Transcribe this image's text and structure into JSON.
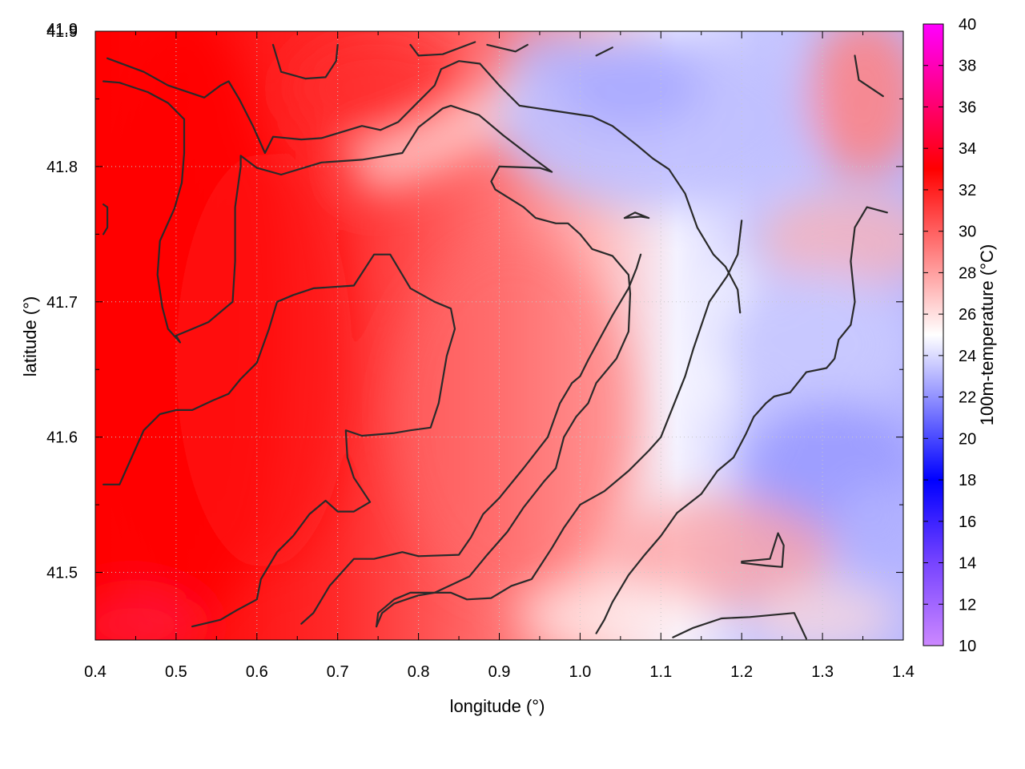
{
  "chart_data": {
    "type": "heatmap",
    "xlabel": "longitude (°)",
    "ylabel": "latitude (°)",
    "colorbar_label": "100m-temperature (°C)",
    "xlim": [
      0.4,
      1.4
    ],
    "ylim": [
      41.45,
      41.9
    ],
    "xticks": [
      "0.4",
      "0.5",
      "0.6",
      "0.7",
      "0.8",
      "0.9",
      "1.0",
      "1.1",
      "1.2",
      "1.3",
      "1.4"
    ],
    "yticks": [
      "41.5",
      "41.6",
      "41.7",
      "41.8",
      "41.9"
    ],
    "colorbar_range": [
      10,
      40
    ],
    "colorbar_ticks": [
      "10",
      "12",
      "14",
      "16",
      "18",
      "20",
      "22",
      "24",
      "26",
      "28",
      "30",
      "32",
      "34",
      "36",
      "38",
      "40"
    ],
    "grid": true,
    "colormap_stops": [
      {
        "value": 10,
        "color": "#cc88ff"
      },
      {
        "value": 14,
        "color": "#7744ff"
      },
      {
        "value": 18,
        "color": "#0000ff"
      },
      {
        "value": 25,
        "color": "#ffffff"
      },
      {
        "value": 33,
        "color": "#ff0000"
      },
      {
        "value": 40,
        "color": "#ff00ff"
      }
    ],
    "temperature_field": {
      "approx_range": [
        22,
        34
      ],
      "west": "32–34 °C (red)",
      "center": "26–30 °C (light red)",
      "east": "22–24 °C (blue)"
    },
    "contour_color": "#2a2a2a",
    "contours": [
      [
        [
          0.415,
          41.88
        ],
        [
          0.46,
          41.87
        ],
        [
          0.49,
          41.86
        ],
        [
          0.535,
          41.851
        ],
        [
          0.555,
          41.86
        ],
        [
          0.565,
          41.863
        ],
        [
          0.578,
          41.85
        ],
        [
          0.595,
          41.83
        ],
        [
          0.61,
          41.81
        ],
        [
          0.62,
          41.822
        ],
        [
          0.655,
          41.82
        ],
        [
          0.68,
          41.821
        ],
        [
          0.73,
          41.83
        ],
        [
          0.753,
          41.827
        ],
        [
          0.775,
          41.833
        ],
        [
          0.8,
          41.848
        ],
        [
          0.82,
          41.86
        ],
        [
          0.828,
          41.872
        ],
        [
          0.85,
          41.878
        ],
        [
          0.876,
          41.876
        ],
        [
          0.9,
          41.86
        ],
        [
          0.925,
          41.845
        ],
        [
          0.97,
          41.841
        ],
        [
          1.015,
          41.837
        ],
        [
          1.04,
          41.83
        ],
        [
          1.07,
          41.816
        ],
        [
          1.09,
          41.806
        ],
        [
          1.11,
          41.798
        ],
        [
          1.13,
          41.78
        ],
        [
          1.145,
          41.755
        ],
        [
          1.165,
          41.735
        ],
        [
          1.18,
          41.726
        ],
        [
          1.195,
          41.709
        ],
        [
          1.198,
          41.692
        ]
      ],
      [
        [
          0.41,
          41.863
        ],
        [
          0.43,
          41.862
        ],
        [
          0.465,
          41.855
        ],
        [
          0.49,
          41.847
        ],
        [
          0.51,
          41.835
        ],
        [
          0.51,
          41.81
        ],
        [
          0.507,
          41.788
        ],
        [
          0.498,
          41.769
        ],
        [
          0.48,
          41.745
        ],
        [
          0.477,
          41.72
        ],
        [
          0.483,
          41.696
        ],
        [
          0.49,
          41.68
        ],
        [
          0.505,
          41.67
        ],
        [
          0.5,
          41.675
        ],
        [
          0.52,
          41.68
        ],
        [
          0.54,
          41.685
        ],
        [
          0.56,
          41.695
        ],
        [
          0.57,
          41.7
        ],
        [
          0.573,
          41.73
        ],
        [
          0.573,
          41.77
        ],
        [
          0.58,
          41.8
        ],
        [
          0.58,
          41.808
        ],
        [
          0.6,
          41.799
        ],
        [
          0.63,
          41.794
        ],
        [
          0.68,
          41.803
        ],
        [
          0.73,
          41.805
        ],
        [
          0.78,
          41.81
        ],
        [
          0.8,
          41.829
        ],
        [
          0.83,
          41.843
        ],
        [
          0.84,
          41.845
        ],
        [
          0.875,
          41.838
        ],
        [
          0.905,
          41.823
        ],
        [
          0.94,
          41.807
        ],
        [
          0.965,
          41.796
        ],
        [
          0.95,
          41.799
        ],
        [
          0.9,
          41.8
        ],
        [
          0.89,
          41.789
        ],
        [
          0.895,
          41.783
        ],
        [
          0.93,
          41.77
        ],
        [
          0.945,
          41.762
        ],
        [
          0.97,
          41.758
        ],
        [
          0.985,
          41.758
        ],
        [
          1.0,
          41.75
        ],
        [
          1.015,
          41.739
        ],
        [
          1.04,
          41.734
        ],
        [
          1.06,
          41.72
        ],
        [
          1.062,
          41.706
        ],
        [
          1.06,
          41.678
        ],
        [
          1.045,
          41.658
        ],
        [
          1.02,
          41.64
        ],
        [
          1.01,
          41.625
        ],
        [
          0.995,
          41.615
        ],
        [
          0.98,
          41.6
        ],
        [
          0.97,
          41.577
        ],
        [
          0.955,
          41.567
        ],
        [
          0.93,
          41.548
        ],
        [
          0.91,
          41.53
        ],
        [
          0.885,
          41.513
        ],
        [
          0.863,
          41.497
        ],
        [
          0.82,
          41.485
        ],
        [
          0.8,
          41.483
        ],
        [
          0.79,
          41.481
        ],
        [
          0.77,
          41.477
        ],
        [
          0.755,
          41.47
        ],
        [
          0.748,
          41.46
        ]
      ],
      [
        [
          0.41,
          41.565
        ],
        [
          0.43,
          41.565
        ],
        [
          0.445,
          41.585
        ],
        [
          0.46,
          41.605
        ],
        [
          0.48,
          41.617
        ],
        [
          0.5,
          41.62
        ],
        [
          0.52,
          41.62
        ],
        [
          0.545,
          41.627
        ],
        [
          0.565,
          41.632
        ],
        [
          0.58,
          41.643
        ],
        [
          0.6,
          41.655
        ],
        [
          0.615,
          41.68
        ],
        [
          0.625,
          41.7
        ],
        [
          0.645,
          41.705
        ],
        [
          0.67,
          41.71
        ],
        [
          0.72,
          41.712
        ],
        [
          0.745,
          41.735
        ],
        [
          0.765,
          41.735
        ],
        [
          0.79,
          41.71
        ],
        [
          0.82,
          41.7
        ],
        [
          0.84,
          41.695
        ],
        [
          0.845,
          41.68
        ],
        [
          0.835,
          41.66
        ],
        [
          0.825,
          41.625
        ],
        [
          0.815,
          41.607
        ],
        [
          0.79,
          41.605
        ],
        [
          0.77,
          41.603
        ],
        [
          0.73,
          41.601
        ],
        [
          0.71,
          41.605
        ],
        [
          0.712,
          41.585
        ],
        [
          0.72,
          41.57
        ],
        [
          0.74,
          41.552
        ],
        [
          0.72,
          41.545
        ],
        [
          0.7,
          41.545
        ],
        [
          0.685,
          41.553
        ],
        [
          0.665,
          41.543
        ],
        [
          0.645,
          41.527
        ],
        [
          0.625,
          41.515
        ],
        [
          0.605,
          41.495
        ],
        [
          0.605,
          41.495
        ],
        [
          0.6,
          41.48
        ],
        [
          0.575,
          41.472
        ],
        [
          0.555,
          41.465
        ],
        [
          0.52,
          41.46
        ]
      ],
      [
        [
          0.655,
          41.462
        ],
        [
          0.67,
          41.47
        ],
        [
          0.69,
          41.49
        ],
        [
          0.72,
          41.51
        ],
        [
          0.745,
          41.51
        ],
        [
          0.78,
          41.515
        ],
        [
          0.8,
          41.512
        ],
        [
          0.85,
          41.513
        ],
        [
          0.865,
          41.526
        ],
        [
          0.88,
          41.543
        ],
        [
          0.9,
          41.555
        ],
        [
          0.93,
          41.577
        ],
        [
          0.96,
          41.6
        ],
        [
          0.975,
          41.625
        ],
        [
          0.99,
          41.64
        ],
        [
          1.0,
          41.645
        ],
        [
          1.01,
          41.657
        ],
        [
          1.04,
          41.69
        ],
        [
          1.06,
          41.71
        ],
        [
          1.07,
          41.725
        ],
        [
          1.075,
          41.735
        ]
      ],
      [
        [
          0.748,
          41.46
        ],
        [
          0.75,
          41.47
        ],
        [
          0.77,
          41.48
        ],
        [
          0.79,
          41.485
        ],
        [
          0.84,
          41.485
        ],
        [
          0.86,
          41.48
        ],
        [
          0.89,
          41.481
        ],
        [
          0.915,
          41.49
        ],
        [
          0.94,
          41.495
        ],
        [
          0.965,
          41.518
        ],
        [
          0.98,
          41.533
        ],
        [
          1.0,
          41.55
        ],
        [
          1.03,
          41.56
        ],
        [
          1.06,
          41.575
        ],
        [
          1.085,
          41.59
        ],
        [
          1.1,
          41.6
        ],
        [
          1.11,
          41.615
        ],
        [
          1.13,
          41.645
        ],
        [
          1.14,
          41.665
        ],
        [
          1.16,
          41.7
        ],
        [
          1.182,
          41.719
        ],
        [
          1.195,
          41.735
        ],
        [
          1.2,
          41.76
        ],
        [
          1.2,
          41.76
        ]
      ],
      [
        [
          1.02,
          41.455
        ],
        [
          1.03,
          41.465
        ],
        [
          1.04,
          41.478
        ],
        [
          1.06,
          41.498
        ],
        [
          1.08,
          41.513
        ],
        [
          1.1,
          41.527
        ],
        [
          1.12,
          41.544
        ],
        [
          1.15,
          41.558
        ],
        [
          1.17,
          41.575
        ],
        [
          1.19,
          41.585
        ],
        [
          1.205,
          41.602
        ],
        [
          1.215,
          41.615
        ],
        [
          1.23,
          41.625
        ],
        [
          1.24,
          41.63
        ],
        [
          1.26,
          41.633
        ],
        [
          1.28,
          41.648
        ],
        [
          1.305,
          41.651
        ],
        [
          1.315,
          41.658
        ],
        [
          1.32,
          41.672
        ],
        [
          1.335,
          41.683
        ],
        [
          1.34,
          41.7
        ],
        [
          1.335,
          41.73
        ],
        [
          1.34,
          41.755
        ],
        [
          1.355,
          41.77
        ],
        [
          1.38,
          41.766
        ]
      ],
      [
        [
          1.115,
          41.452
        ],
        [
          1.14,
          41.459
        ],
        [
          1.175,
          41.466
        ],
        [
          1.21,
          41.467
        ],
        [
          1.265,
          41.47
        ],
        [
          1.28,
          41.451
        ]
      ],
      [
        [
          1.2,
          41.507
        ],
        [
          1.23,
          41.505
        ],
        [
          1.25,
          41.504
        ],
        [
          1.252,
          41.52
        ],
        [
          1.245,
          41.529
        ],
        [
          1.235,
          41.51
        ],
        [
          1.2,
          41.508
        ]
      ],
      [
        [
          1.34,
          41.882
        ],
        [
          1.345,
          41.864
        ],
        [
          1.375,
          41.852
        ]
      ],
      [
        [
          1.02,
          41.882
        ],
        [
          1.04,
          41.888
        ]
      ],
      [
        [
          1.055,
          41.762
        ],
        [
          1.075,
          41.763
        ],
        [
          1.085,
          41.762
        ],
        [
          1.068,
          41.766
        ],
        [
          1.055,
          41.762
        ]
      ],
      [
        [
          0.79,
          41.89
        ],
        [
          0.8,
          41.882
        ],
        [
          0.83,
          41.883
        ],
        [
          0.87,
          41.892
        ]
      ],
      [
        [
          0.885,
          41.89
        ],
        [
          0.92,
          41.885
        ],
        [
          0.935,
          41.89
        ]
      ],
      [
        [
          0.62,
          41.89
        ],
        [
          0.63,
          41.87
        ],
        [
          0.66,
          41.865
        ],
        [
          0.685,
          41.866
        ],
        [
          0.698,
          41.878
        ],
        [
          0.7,
          41.89
        ]
      ],
      [
        [
          0.41,
          41.75
        ],
        [
          0.415,
          41.755
        ],
        [
          0.415,
          41.77
        ],
        [
          0.41,
          41.772
        ]
      ]
    ]
  }
}
